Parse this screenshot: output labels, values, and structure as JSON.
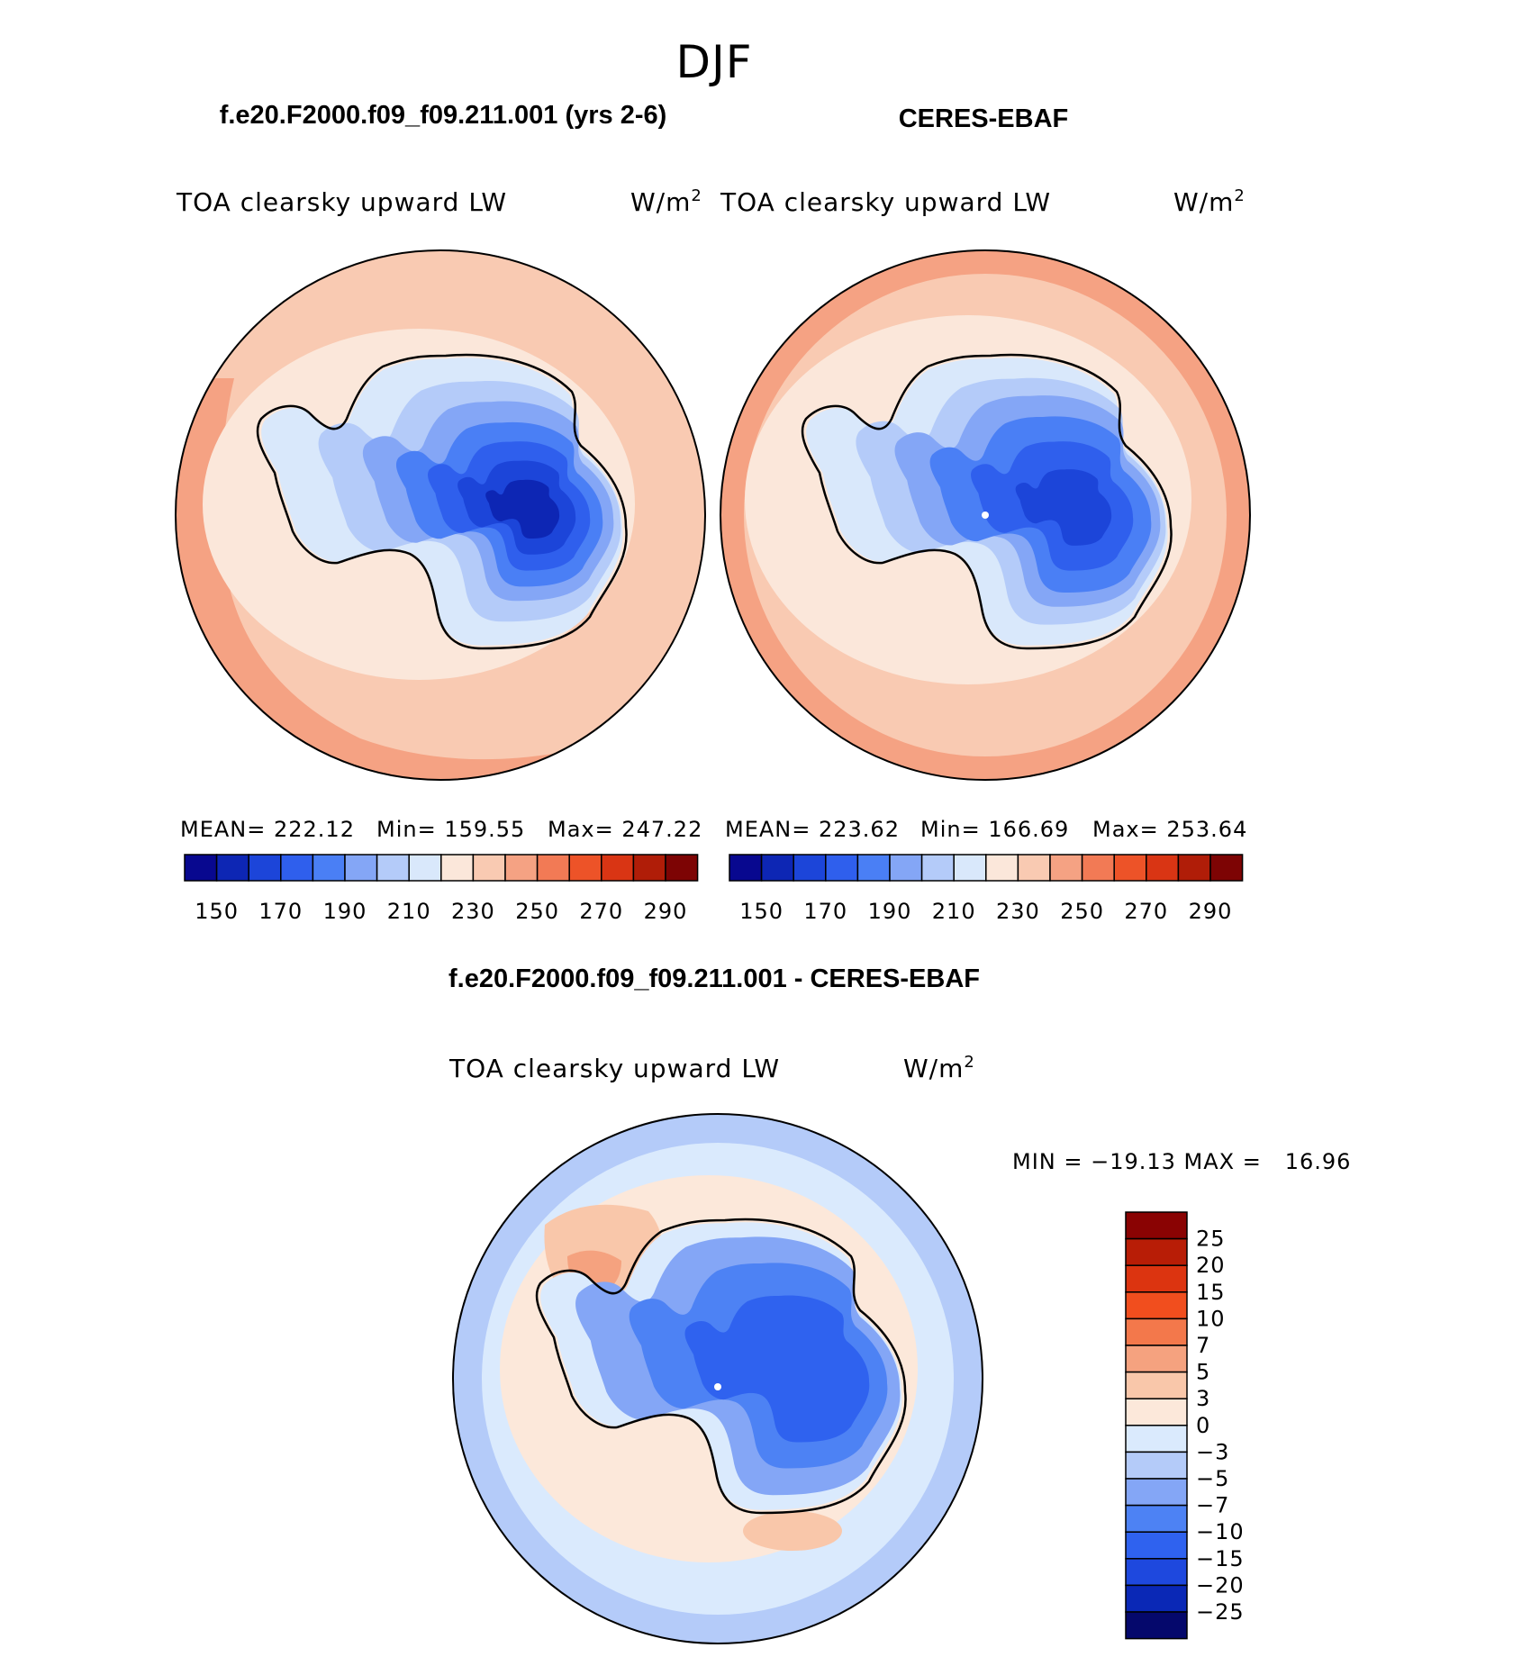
{
  "page_title": "DJF",
  "palette_main": [
    "#08088f",
    "#0d26b4",
    "#1c45d9",
    "#2f5fed",
    "#4a7ff5",
    "#84a6f6",
    "#b4cbf9",
    "#d9e8fb",
    "#fbe7da",
    "#f9cab2",
    "#f5a283",
    "#f27a55",
    "#ed5328",
    "#d93514",
    "#b01d08",
    "#7d0404"
  ],
  "palette_diff": [
    "#05086c",
    "#0a28b6",
    "#1e48de",
    "#2f62ef",
    "#4d82f4",
    "#84a6f6",
    "#b4cbf9",
    "#daeafd",
    "#fce8da",
    "#f9c7aa",
    "#f5a27f",
    "#f3784b",
    "#f14e1e",
    "#dc3410",
    "#b81d06",
    "#8a0303"
  ],
  "panels": [
    {
      "case_title": "f.e20.F2000.f09_f09.211.001 (yrs 2-6)",
      "variable": "TOA clearsky upward LW",
      "units": "W/m",
      "units_sup": "2",
      "stats": {
        "mean": "MEAN= 222.12",
        "min": "Min= 159.55",
        "max": "Max= 247.22"
      },
      "colorbar_ticks": [
        "150",
        "170",
        "190",
        "210",
        "230",
        "250",
        "270",
        "290"
      ]
    },
    {
      "case_title": "CERES-EBAF",
      "variable": "TOA clearsky upward LW",
      "units": "W/m",
      "units_sup": "2",
      "stats": {
        "mean": "MEAN= 223.62",
        "min": "Min= 166.69",
        "max": "Max= 253.64"
      },
      "colorbar_ticks": [
        "150",
        "170",
        "190",
        "210",
        "230",
        "250",
        "270",
        "290"
      ]
    }
  ],
  "diff_panel": {
    "case_title": "f.e20.F2000.f09_f09.211.001 - CERES-EBAF",
    "variable": "TOA clearsky upward LW",
    "units": "W/m",
    "units_sup": "2",
    "minmax": "MIN = −19.13 MAX =   16.96",
    "colorbar_ticks": [
      "25",
      "20",
      "15",
      "10",
      "7",
      "5",
      "3",
      "0",
      "−3",
      "−5",
      "−7",
      "−10",
      "−15",
      "−20",
      "−25"
    ]
  },
  "chart_data": [
    {
      "type": "heatmap",
      "title": "f.e20.F2000.f09_f09.211.001 (yrs 2-6)",
      "variable": "TOA clearsky upward LW",
      "units": "W/m2",
      "season": "DJF",
      "projection": "south polar stereographic",
      "mean": 222.12,
      "min": 159.55,
      "max": 247.22,
      "contour_levels": [
        150,
        160,
        170,
        180,
        190,
        200,
        210,
        220,
        230,
        240,
        250,
        260,
        270,
        280,
        290
      ]
    },
    {
      "type": "heatmap",
      "title": "CERES-EBAF",
      "variable": "TOA clearsky upward LW",
      "units": "W/m2",
      "season": "DJF",
      "projection": "south polar stereographic",
      "mean": 223.62,
      "min": 166.69,
      "max": 253.64,
      "contour_levels": [
        150,
        160,
        170,
        180,
        190,
        200,
        210,
        220,
        230,
        240,
        250,
        260,
        270,
        280,
        290
      ]
    },
    {
      "type": "heatmap",
      "title": "f.e20.F2000.f09_f09.211.001 - CERES-EBAF",
      "variable": "TOA clearsky upward LW",
      "units": "W/m2",
      "season": "DJF",
      "projection": "south polar stereographic",
      "min": -19.13,
      "max": 16.96,
      "contour_levels": [
        -25,
        -20,
        -15,
        -10,
        -7,
        -5,
        -3,
        0,
        3,
        5,
        7,
        10,
        15,
        20,
        25
      ]
    }
  ]
}
